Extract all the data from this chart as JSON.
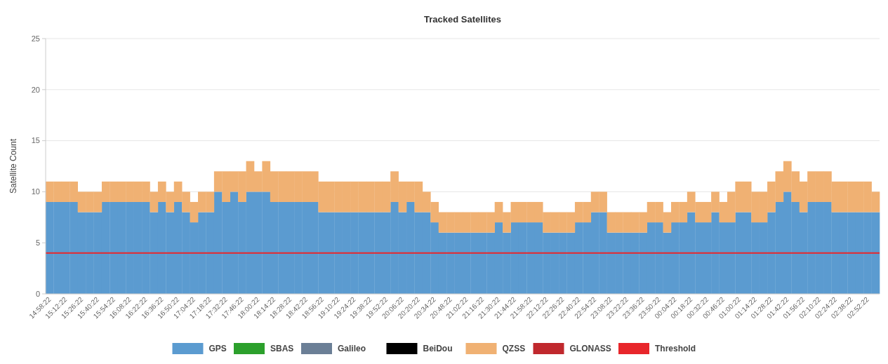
{
  "chart_data": {
    "type": "bar",
    "stacked": true,
    "title": "Tracked Satellites",
    "ylabel": "Satellite Count",
    "ylim": [
      0,
      25
    ],
    "yticks": [
      0,
      5,
      10,
      15,
      20,
      25
    ],
    "grid": "y",
    "legend": "bottom",
    "categories": [
      "14:58:22",
      null,
      "15:12:22",
      null,
      "15:26:22",
      null,
      "15:40:22",
      null,
      "15:54:22",
      null,
      "16:08:22",
      null,
      "16:22:22",
      null,
      "16:36:22",
      null,
      "16:50:22",
      null,
      "17:04:22",
      null,
      "17:18:22",
      null,
      "17:32:22",
      null,
      "17:46:22",
      null,
      "18:00:22",
      null,
      "18:14:22",
      null,
      "18:28:22",
      null,
      "18:42:22",
      null,
      "18:56:22",
      null,
      "19:10:22",
      null,
      "19:24:22",
      null,
      "19:38:22",
      null,
      "19:52:22",
      null,
      "20:06:22",
      null,
      "20:20:22",
      null,
      "20:34:22",
      null,
      "20:48:22",
      null,
      "21:02:22",
      null,
      "21:16:22",
      null,
      "21:30:22",
      null,
      "21:44:22",
      null,
      "21:58:22",
      null,
      "22:12:22",
      null,
      "22:26:22",
      null,
      "22:40:22",
      null,
      "22:54:22",
      null,
      "23:08:22",
      null,
      "23:22:22",
      null,
      "23:36:22",
      null,
      "23:50:22",
      null,
      "00:04:22",
      null,
      "00:18:22",
      null,
      "00:32:22",
      null,
      "00:46:22",
      null,
      "01:00:22",
      null,
      "01:14:22",
      null,
      "01:28:22",
      null,
      "01:42:22",
      null,
      "01:56:22",
      null,
      "02:10:22",
      null,
      "02:24:22",
      null,
      "02:38:22",
      null,
      "02:52:22",
      null
    ],
    "series": [
      {
        "name": "GPS",
        "color": "#5b9bd0",
        "values": [
          9,
          9,
          9,
          9,
          8,
          8,
          8,
          9,
          9,
          9,
          9,
          9,
          9,
          8,
          9,
          8,
          9,
          8,
          7,
          8,
          8,
          10,
          9,
          10,
          9,
          10,
          10,
          10,
          9,
          9,
          9,
          9,
          9,
          9,
          8,
          8,
          8,
          8,
          8,
          8,
          8,
          8,
          8,
          9,
          8,
          9,
          8,
          8,
          7,
          6,
          6,
          6,
          6,
          6,
          6,
          6,
          7,
          6,
          7,
          7,
          7,
          7,
          6,
          6,
          6,
          6,
          7,
          7,
          8,
          8,
          6,
          6,
          6,
          6,
          6,
          7,
          7,
          6,
          7,
          7,
          8,
          7,
          7,
          8,
          7,
          7,
          8,
          8,
          7,
          7,
          8,
          9,
          10,
          9,
          8,
          9,
          9,
          9,
          8,
          8,
          8,
          8,
          8,
          8
        ]
      },
      {
        "name": "SBAS",
        "color": "#2ca02c",
        "values": [
          0,
          0,
          0,
          0,
          0,
          0,
          0,
          0,
          0,
          0,
          0,
          0,
          0,
          0,
          0,
          0,
          0,
          0,
          0,
          0,
          0,
          0,
          0,
          0,
          0,
          0,
          0,
          0,
          0,
          0,
          0,
          0,
          0,
          0,
          0,
          0,
          0,
          0,
          0,
          0,
          0,
          0,
          0,
          0,
          0,
          0,
          0,
          0,
          0,
          0,
          0,
          0,
          0,
          0,
          0,
          0,
          0,
          0,
          0,
          0,
          0,
          0,
          0,
          0,
          0,
          0,
          0,
          0,
          0,
          0,
          0,
          0,
          0,
          0,
          0,
          0,
          0,
          0,
          0,
          0,
          0,
          0,
          0,
          0,
          0,
          0,
          0,
          0,
          0,
          0,
          0,
          0,
          0,
          0,
          0,
          0,
          0,
          0,
          0,
          0,
          0,
          0,
          0,
          0
        ]
      },
      {
        "name": "Galileo",
        "color": "#6b7f96",
        "values": [
          0,
          0,
          0,
          0,
          0,
          0,
          0,
          0,
          0,
          0,
          0,
          0,
          0,
          0,
          0,
          0,
          0,
          0,
          0,
          0,
          0,
          0,
          0,
          0,
          0,
          0,
          0,
          0,
          0,
          0,
          0,
          0,
          0,
          0,
          0,
          0,
          0,
          0,
          0,
          0,
          0,
          0,
          0,
          0,
          0,
          0,
          0,
          0,
          0,
          0,
          0,
          0,
          0,
          0,
          0,
          0,
          0,
          0,
          0,
          0,
          0,
          0,
          0,
          0,
          0,
          0,
          0,
          0,
          0,
          0,
          0,
          0,
          0,
          0,
          0,
          0,
          0,
          0,
          0,
          0,
          0,
          0,
          0,
          0,
          0,
          0,
          0,
          0,
          0,
          0,
          0,
          0,
          0,
          0,
          0,
          0,
          0,
          0,
          0,
          0,
          0,
          0,
          0,
          0
        ]
      },
      {
        "name": "BeiDou",
        "color": "#000000",
        "values": [
          0,
          0,
          0,
          0,
          0,
          0,
          0,
          0,
          0,
          0,
          0,
          0,
          0,
          0,
          0,
          0,
          0,
          0,
          0,
          0,
          0,
          0,
          0,
          0,
          0,
          0,
          0,
          0,
          0,
          0,
          0,
          0,
          0,
          0,
          0,
          0,
          0,
          0,
          0,
          0,
          0,
          0,
          0,
          0,
          0,
          0,
          0,
          0,
          0,
          0,
          0,
          0,
          0,
          0,
          0,
          0,
          0,
          0,
          0,
          0,
          0,
          0,
          0,
          0,
          0,
          0,
          0,
          0,
          0,
          0,
          0,
          0,
          0,
          0,
          0,
          0,
          0,
          0,
          0,
          0,
          0,
          0,
          0,
          0,
          0,
          0,
          0,
          0,
          0,
          0,
          0,
          0,
          0,
          0,
          0,
          0,
          0,
          0,
          0,
          0,
          0,
          0,
          0,
          0
        ]
      },
      {
        "name": "QZSS",
        "color": "#f0b173",
        "values": [
          2,
          2,
          2,
          2,
          2,
          2,
          2,
          2,
          2,
          2,
          2,
          2,
          2,
          2,
          2,
          2,
          2,
          2,
          2,
          2,
          2,
          2,
          3,
          2,
          3,
          3,
          2,
          3,
          3,
          3,
          3,
          3,
          3,
          3,
          3,
          3,
          3,
          3,
          3,
          3,
          3,
          3,
          3,
          3,
          3,
          2,
          3,
          2,
          2,
          2,
          2,
          2,
          2,
          2,
          2,
          2,
          2,
          2,
          2,
          2,
          2,
          2,
          2,
          2,
          2,
          2,
          2,
          2,
          2,
          2,
          2,
          2,
          2,
          2,
          2,
          2,
          2,
          2,
          2,
          2,
          2,
          2,
          2,
          2,
          2,
          3,
          3,
          3,
          3,
          3,
          3,
          3,
          3,
          3,
          3,
          3,
          3,
          3,
          3,
          3,
          3,
          3,
          3,
          2
        ]
      },
      {
        "name": "GLONASS",
        "color": "#c0282d",
        "values": [
          0,
          0,
          0,
          0,
          0,
          0,
          0,
          0,
          0,
          0,
          0,
          0,
          0,
          0,
          0,
          0,
          0,
          0,
          0,
          0,
          0,
          0,
          0,
          0,
          0,
          0,
          0,
          0,
          0,
          0,
          0,
          0,
          0,
          0,
          0,
          0,
          0,
          0,
          0,
          0,
          0,
          0,
          0,
          0,
          0,
          0,
          0,
          0,
          0,
          0,
          0,
          0,
          0,
          0,
          0,
          0,
          0,
          0,
          0,
          0,
          0,
          0,
          0,
          0,
          0,
          0,
          0,
          0,
          0,
          0,
          0,
          0,
          0,
          0,
          0,
          0,
          0,
          0,
          0,
          0,
          0,
          0,
          0,
          0,
          0,
          0,
          0,
          0,
          0,
          0,
          0,
          0,
          0,
          0,
          0,
          0,
          0,
          0,
          0,
          0,
          0,
          0,
          0,
          0
        ]
      }
    ],
    "ref_lines": [
      {
        "axis": "y",
        "value": 4,
        "label": "Threshold",
        "color": "#e8262b"
      }
    ]
  }
}
